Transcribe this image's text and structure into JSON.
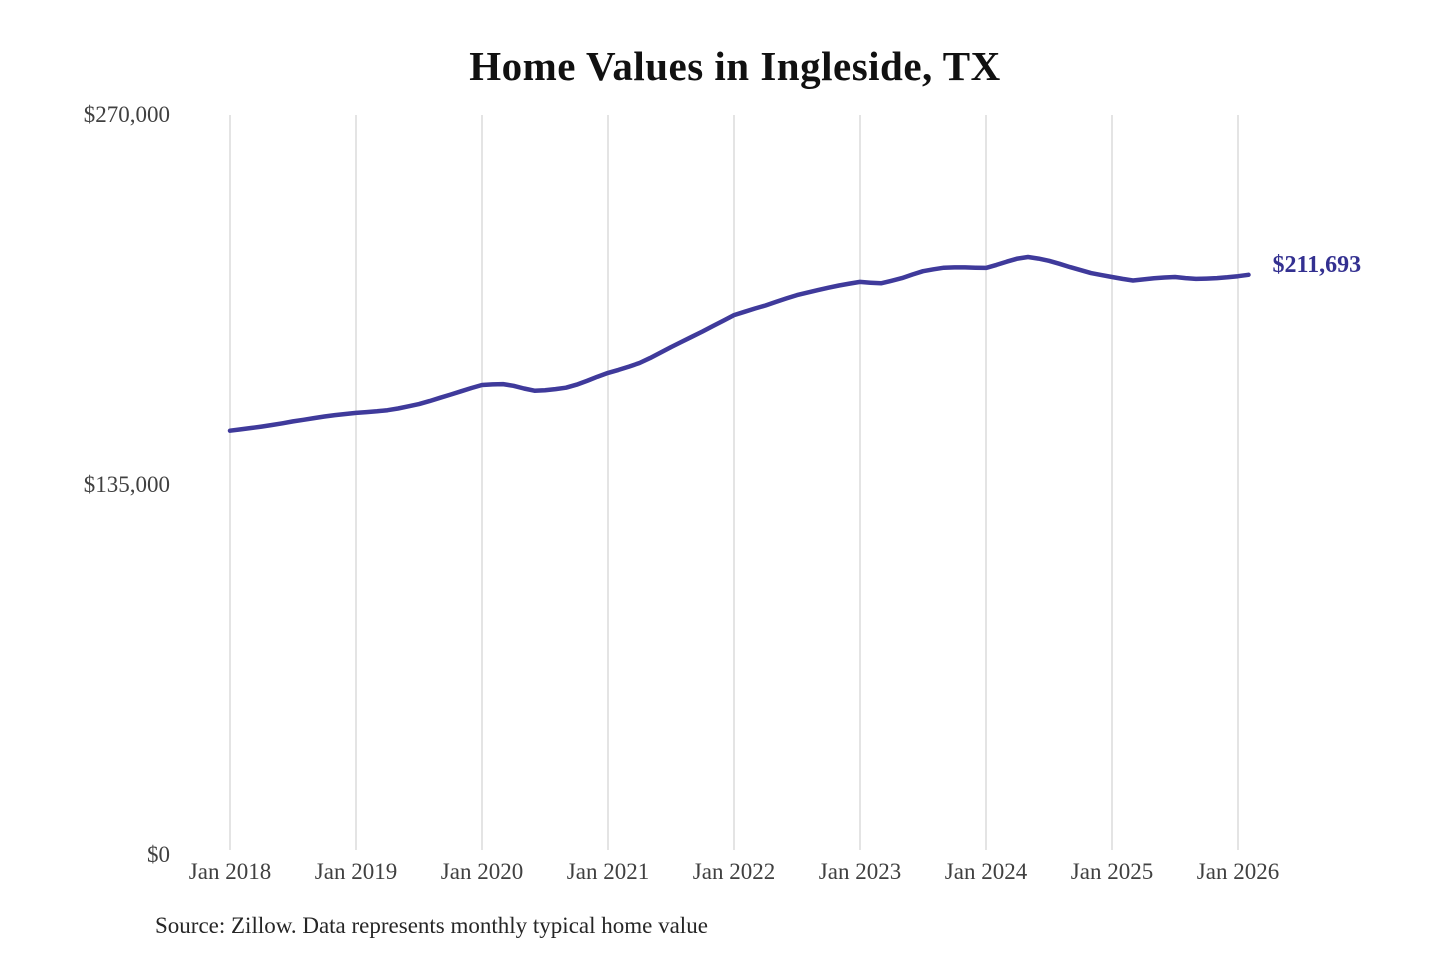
{
  "chart_data": {
    "type": "line",
    "title": "Home Values in Ingleside, TX",
    "xlabel": "",
    "ylabel": "",
    "ylim": [
      0,
      270000
    ],
    "grid": "vertical-only",
    "legend": "none",
    "x_tick_labels": [
      "Jan 2018",
      "Jan 2019",
      "Jan 2020",
      "Jan 2021",
      "Jan 2022",
      "Jan 2023",
      "Jan 2024",
      "Jan 2025",
      "Jan 2026"
    ],
    "y_ticks": [
      {
        "label": "$0",
        "value": 0
      },
      {
        "label": "$135,000",
        "value": 135000
      },
      {
        "label": "$270,000",
        "value": 270000
      }
    ],
    "series": [
      {
        "name": "Monthly typical home value",
        "start": "2018-01",
        "frequency": "monthly",
        "values": [
          154800,
          155300,
          155800,
          156300,
          156900,
          157500,
          158200,
          158800,
          159400,
          160000,
          160500,
          160900,
          161300,
          161600,
          161900,
          162300,
          162900,
          163700,
          164500,
          165600,
          166800,
          168000,
          169200,
          170400,
          171500,
          171700,
          171800,
          171200,
          170200,
          169400,
          169600,
          170000,
          170500,
          171600,
          173000,
          174500,
          175900,
          177000,
          178200,
          179500,
          181300,
          183300,
          185300,
          187200,
          189100,
          191000,
          193000,
          195000,
          197000,
          198200,
          199400,
          200500,
          201800,
          203100,
          204300,
          205200,
          206100,
          207000,
          207800,
          208500,
          209100,
          208800,
          208600,
          209500,
          210500,
          211800,
          213000,
          213700,
          214300,
          214400,
          214400,
          214300,
          214200,
          215300,
          216500,
          217600,
          218200,
          217600,
          216800,
          215700,
          214500,
          213400,
          212300,
          211600,
          210900,
          210200,
          209600,
          210000,
          210400,
          210700,
          210900,
          210500,
          210200,
          210300,
          210500,
          210800,
          211200,
          211693
        ]
      }
    ],
    "end_label": "$211,693",
    "latest_value": 211693,
    "colors": {
      "line": "#3f3a9b",
      "end_label": "#333090",
      "gridline": "#c8c8c8",
      "tick_text": "#404040",
      "title_text": "#111111"
    }
  },
  "footer": {
    "source": "Source: Zillow. Data represents monthly typical home value"
  }
}
